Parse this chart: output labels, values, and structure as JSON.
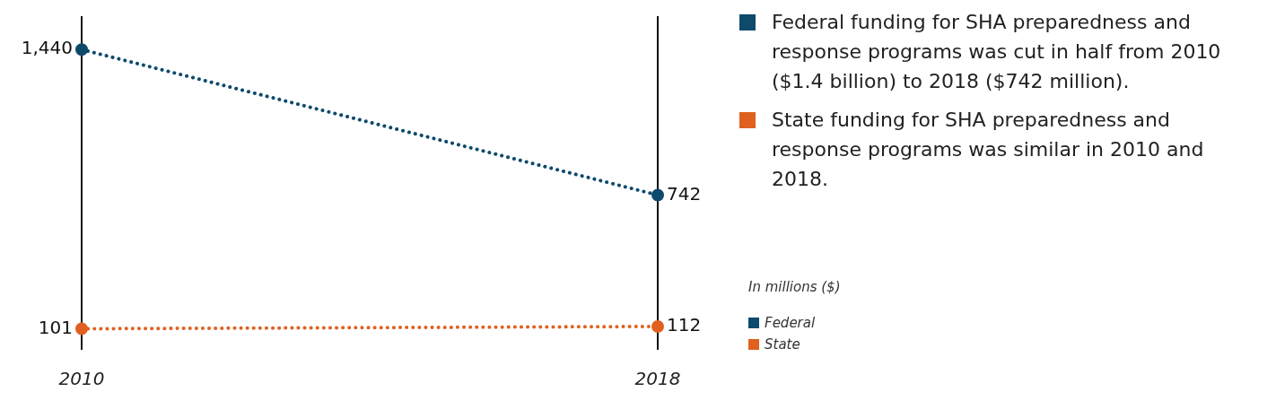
{
  "chart_data": {
    "type": "line",
    "categories": [
      "2010",
      "2018"
    ],
    "series": [
      {
        "name": "Federal",
        "color": "#0d4a6b",
        "values": [
          1440,
          742
        ],
        "value_labels": [
          "1,440",
          "742"
        ]
      },
      {
        "name": "State",
        "color": "#e0601f",
        "values": [
          101,
          112
        ],
        "value_labels": [
          "101",
          "112"
        ]
      }
    ],
    "grid": "x",
    "marker": "circle",
    "line_style": "dotted",
    "legend": "right",
    "legend_title": "In millions ($)",
    "annotations": [
      "Federal funding for SHA preparedness and response programs was cut in half from 2010 ($1.4 billion) to 2018 ($742 million).",
      "State funding for SHA preparedness and response programs was similar in 2010 and 2018."
    ]
  }
}
